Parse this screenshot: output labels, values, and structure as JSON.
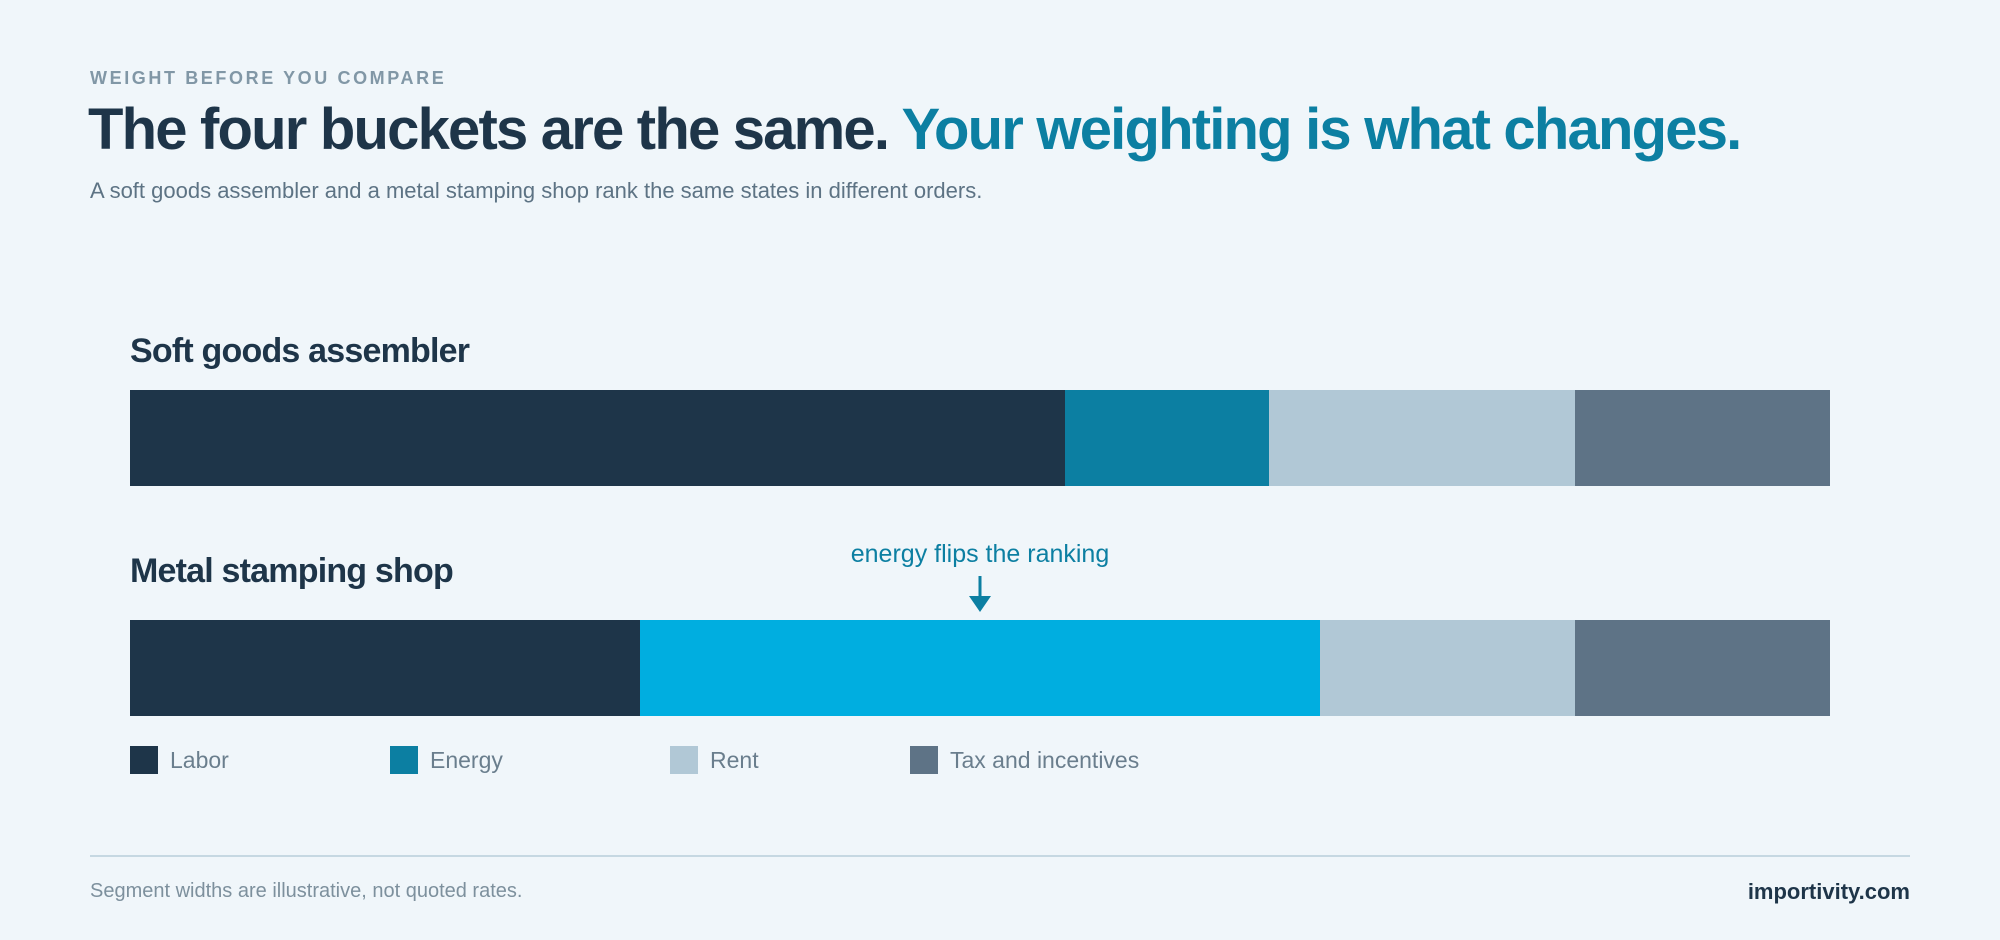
{
  "header": {
    "eyebrow": "WEIGHT BEFORE YOU COMPARE",
    "title_main": "The four buckets are the same.",
    "title_accent": "Your weighting is what changes.",
    "subtitle": "A soft goods assembler and a metal stamping shop rank the same states in different orders."
  },
  "chart_data": {
    "type": "bar",
    "orientation": "horizontal",
    "stacked": true,
    "normalized": true,
    "categories": [
      "Soft goods assembler",
      "Metal stamping shop"
    ],
    "series": [
      {
        "name": "Labor",
        "color": "#1e3549",
        "values": [
          55,
          30
        ]
      },
      {
        "name": "Energy",
        "colors": [
          "#0c7fa2",
          "#00aee0"
        ],
        "color": "#0c7fa2",
        "values": [
          12,
          40
        ]
      },
      {
        "name": "Rent",
        "color": "#b1c8d6",
        "values": [
          18,
          15
        ]
      },
      {
        "name": "Tax and incentives",
        "color": "#5e7386",
        "values": [
          15,
          15
        ]
      }
    ],
    "annotation": {
      "text": "energy flips the ranking",
      "category": "Metal stamping shop",
      "series": "Energy"
    },
    "legend_position": "bottom-left",
    "grid": false
  },
  "footer": {
    "note": "Segment widths are illustrative, not quoted rates.",
    "brand": "importivity.com"
  }
}
